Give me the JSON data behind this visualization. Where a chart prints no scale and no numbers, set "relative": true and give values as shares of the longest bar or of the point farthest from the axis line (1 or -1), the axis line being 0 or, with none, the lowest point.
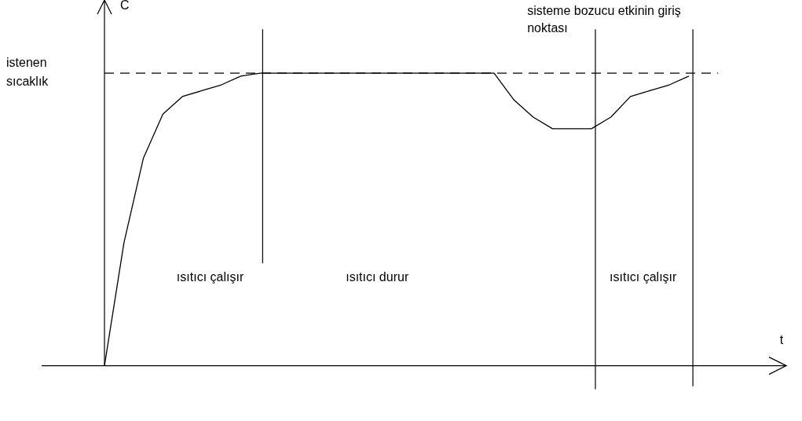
{
  "chart_data": {
    "type": "line",
    "relative": true,
    "xlabel": "t",
    "ylabel": "C",
    "grid": false,
    "legend": false,
    "marker": "none",
    "line_style": "solid",
    "categories": [
      null,
      null,
      null,
      null,
      null,
      null,
      null,
      null,
      null,
      null,
      null,
      null,
      null,
      null,
      null,
      null,
      null,
      null,
      null,
      null,
      null,
      null,
      null,
      null,
      null,
      null,
      null,
      null,
      null,
      null,
      null,
      null,
      null,
      null,
      null,
      null
    ],
    "series": [
      {
        "color": "#000000",
        "values": [
          0,
          0.42,
          0.71,
          0.86,
          0.92,
          0.94,
          0.96,
          0.99,
          1,
          1,
          1,
          1,
          1,
          1,
          1,
          1,
          1,
          1,
          1,
          1,
          1,
          0.91,
          0.85,
          0.81,
          0.81,
          0.81,
          0.85,
          0.92,
          0.94,
          0.96,
          0.99,
          null,
          null,
          null,
          null,
          null
        ]
      }
    ],
    "ref_lines": [
      {
        "axis": "y",
        "value": 1,
        "label": "istenen sıcaklık",
        "line_style": "dashed",
        "color": "#000000"
      }
    ],
    "annotations": [
      "ısıtıcı çalışır",
      "ısıtıcı durur",
      "ısıtıcı çalışır",
      "sisteme bozucu etkinin giriş noktası"
    ]
  }
}
